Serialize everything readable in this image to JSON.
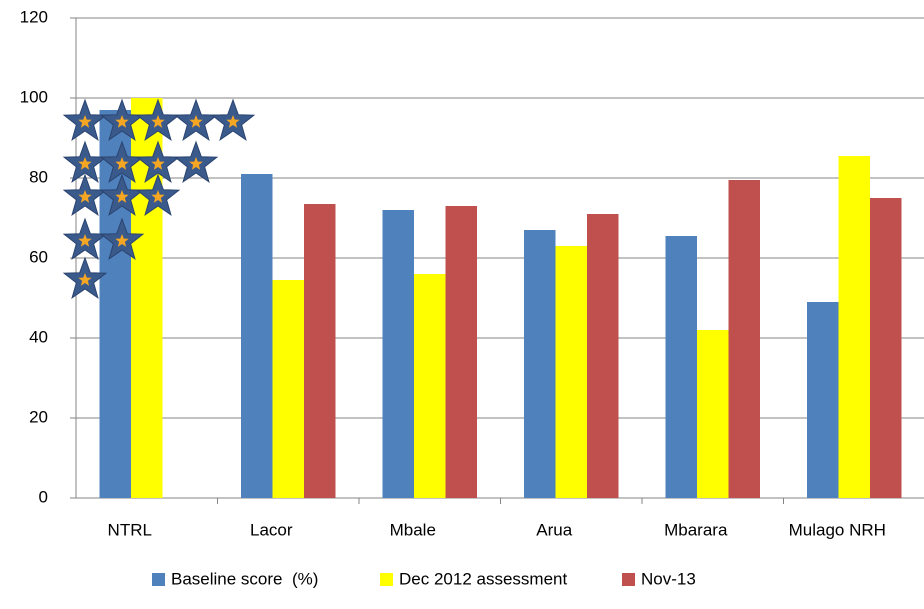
{
  "chart_data": {
    "type": "bar",
    "categories": [
      "NTRL",
      "Lacor",
      "Mbale",
      "Arua",
      "Mbarara",
      "Mulago NRH"
    ],
    "series": [
      {
        "name": "Baseline score  (%)",
        "color": "#4f81bd",
        "values": [
          97,
          81,
          72,
          67,
          65.5,
          49
        ]
      },
      {
        "name": "Dec 2012 assessment",
        "color": "#ffff00",
        "values": [
          100,
          54.5,
          56,
          63,
          42,
          85.5
        ]
      },
      {
        "name": "Nov-13",
        "color": "#c0504d",
        "values": [
          null,
          73.5,
          73,
          71,
          79.5,
          75
        ]
      }
    ],
    "ylim": [
      0,
      120
    ],
    "yticks": [
      0,
      20,
      40,
      60,
      80,
      100,
      120
    ],
    "grid": true,
    "legend": "bottom"
  }
}
